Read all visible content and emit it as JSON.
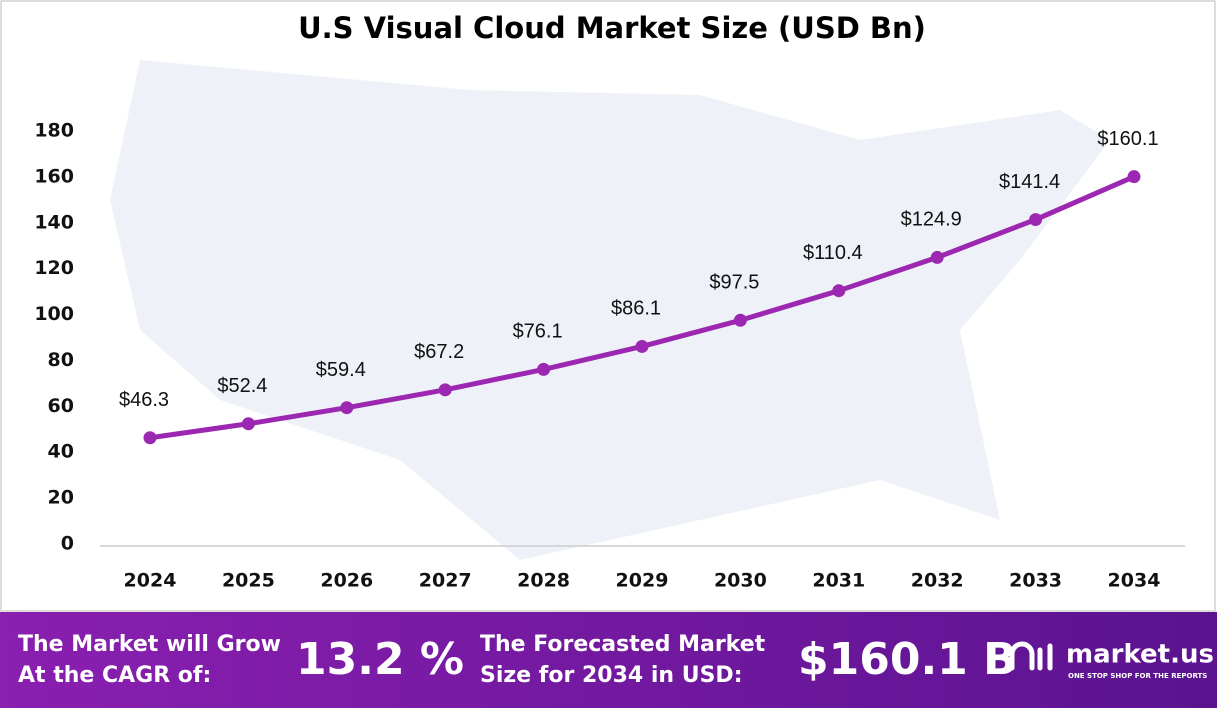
{
  "chart_data": {
    "type": "line",
    "title": "U.S Visual Cloud Market Size (USD Bn)",
    "categories": [
      "2024",
      "2025",
      "2026",
      "2027",
      "2028",
      "2029",
      "2030",
      "2031",
      "2032",
      "2033",
      "2034"
    ],
    "series": [
      {
        "name": "Market Size",
        "color": "#9c27b0",
        "values": [
          46.3,
          52.4,
          59.4,
          67.2,
          76.1,
          86.1,
          97.5,
          110.4,
          124.9,
          141.4,
          160.1
        ],
        "value_labels": [
          "$46.3",
          "$52.4",
          "$59.4",
          "$67.2",
          "$76.1",
          "$86.1",
          "$97.5",
          "$110.4",
          "$124.9",
          "$141.4",
          "$160.1"
        ]
      }
    ],
    "ylim": [
      0,
      180
    ],
    "yticks": [
      0,
      20,
      40,
      60,
      80,
      100,
      120,
      140,
      160,
      180
    ],
    "grid": false
  },
  "footer": {
    "cagr_label": [
      "The Market will Grow",
      "At the CAGR of:"
    ],
    "cagr_value": "13.2 %",
    "forecast_label": [
      "The Forecasted Market",
      "Size for 2034 in USD:"
    ],
    "forecast_value": "$160.1 B",
    "brand": "market.us",
    "tagline": "ONE STOP SHOP FOR THE REPORTS"
  }
}
